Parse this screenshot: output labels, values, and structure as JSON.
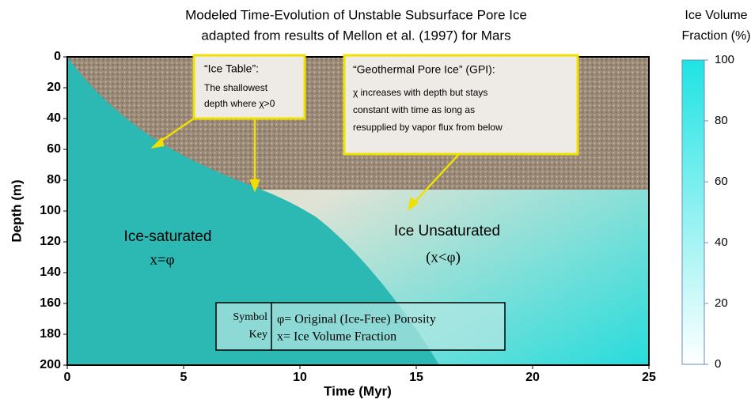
{
  "header": {
    "title_lines": [
      "Modeled Time-Evolution of Unstable Subsurface Pore Ice",
      "adapted from results of Mellon et al. (1997) for Mars"
    ]
  },
  "axes": {
    "x_label": "Time (Myr)",
    "y_label": "Depth (m)",
    "xlim": [
      0,
      25
    ],
    "ylim": [
      0,
      200
    ],
    "xticks": [
      0,
      5,
      10,
      15,
      20,
      25
    ],
    "yticks": [
      0,
      20,
      40,
      60,
      80,
      100,
      120,
      140,
      160,
      180,
      200
    ]
  },
  "colorbar": {
    "title_lines": [
      "Ice Volume",
      "Fraction (%)"
    ],
    "lim": [
      0,
      100
    ],
    "ticks": [
      0,
      20,
      40,
      60,
      80,
      100
    ]
  },
  "annotations": {
    "ice_table": {
      "title": "“Ice Table”:",
      "lines": [
        "The shallowest",
        "depth where χ>0"
      ]
    },
    "gpi": {
      "title": "“Geothermal Pore Ice” (GPI):",
      "lines": [
        "χ increases with depth but stays",
        "constant with time as long as",
        "resupplied by vapor flux from below"
      ]
    },
    "saturated": [
      "Ice-saturated",
      "x=φ"
    ],
    "unsaturated": [
      "Ice Unsaturated",
      "(x<φ)"
    ]
  },
  "key": {
    "label_lines": [
      "Symbol",
      "Key"
    ],
    "entries": [
      "φ= Original (Ice-Free) Porosity",
      "x= Ice Volume Fraction"
    ]
  }
}
